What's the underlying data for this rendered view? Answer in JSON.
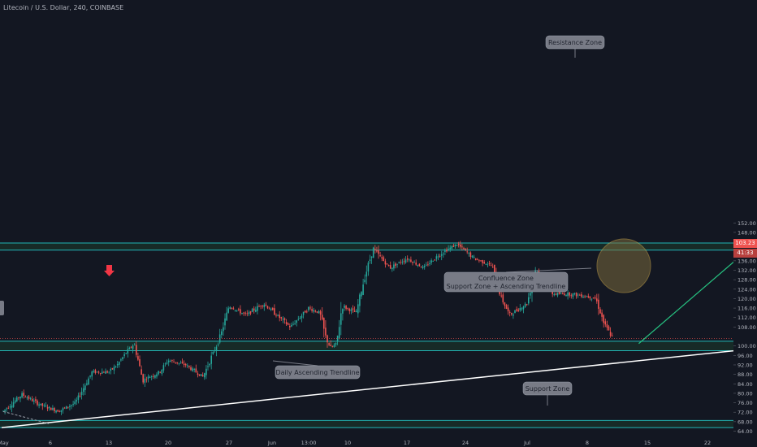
{
  "header": {
    "symbol_line": "Litecoin / U.S. Dollar, 240, COINBASE"
  },
  "price_tag": {
    "value": "103.23",
    "countdown": "41:33"
  },
  "chart_data": {
    "type": "candlestick",
    "title": "Litecoin / U.S. Dollar, 240, COINBASE",
    "ylim": [
      64,
      152
    ],
    "y_ticks": [
      "152.00",
      "148.00",
      "144.00",
      "140.00",
      "136.00",
      "132.00",
      "128.00",
      "124.00",
      "120.00",
      "116.00",
      "112.00",
      "108.00",
      "100.00",
      "96.00",
      "92.00",
      "88.00",
      "84.00",
      "80.00",
      "76.00",
      "72.00",
      "68.00",
      "64.00"
    ],
    "x_ticks": [
      "May",
      "6",
      "13",
      "20",
      "27",
      "Jun",
      "13:00",
      "10",
      "17",
      "24",
      "Jul",
      "8",
      "15",
      "22"
    ],
    "price_path": [
      {
        "x": "May 1",
        "y": 72.5
      },
      {
        "x": "May 3",
        "y": 79.5
      },
      {
        "x": "May 5",
        "y": 75
      },
      {
        "x": "May 7",
        "y": 72.5
      },
      {
        "x": "May 9",
        "y": 76
      },
      {
        "x": "May 11",
        "y": 89
      },
      {
        "x": "May 13",
        "y": 89
      },
      {
        "x": "May 14",
        "y": 92
      },
      {
        "x": "May 15",
        "y": 97
      },
      {
        "x": "May 16",
        "y": 101
      },
      {
        "x": "May 17",
        "y": 85.5
      },
      {
        "x": "May 19",
        "y": 89
      },
      {
        "x": "May 20",
        "y": 94
      },
      {
        "x": "May 22",
        "y": 92
      },
      {
        "x": "May 24",
        "y": 87
      },
      {
        "x": "May 26",
        "y": 104
      },
      {
        "x": "May 27",
        "y": 117
      },
      {
        "x": "May 29",
        "y": 113
      },
      {
        "x": "May 31",
        "y": 118
      },
      {
        "x": "Jun 2",
        "y": 108
      },
      {
        "x": "Jun 3",
        "y": 116
      },
      {
        "x": "Jun 5",
        "y": 114
      },
      {
        "x": "Jun 6",
        "y": 104
      },
      {
        "x": "Jun 7",
        "y": 99
      },
      {
        "x": "Jun 8",
        "y": 101
      },
      {
        "x": "Jun 9",
        "y": 117
      },
      {
        "x": "Jun 11",
        "y": 114
      },
      {
        "x": "Jun 12",
        "y": 129
      },
      {
        "x": "Jun 13",
        "y": 141
      },
      {
        "x": "Jun 15",
        "y": 133
      },
      {
        "x": "Jun 17",
        "y": 137
      },
      {
        "x": "Jun 19",
        "y": 133
      },
      {
        "x": "Jun 21",
        "y": 139
      },
      {
        "x": "Jun 23",
        "y": 143
      },
      {
        "x": "Jun 25",
        "y": 137
      },
      {
        "x": "Jun 27",
        "y": 134
      },
      {
        "x": "Jun 28",
        "y": 121
      },
      {
        "x": "Jun 29",
        "y": 113
      },
      {
        "x": "Jul 1",
        "y": 118
      },
      {
        "x": "Jul 2",
        "y": 133
      },
      {
        "x": "Jul 4",
        "y": 122
      },
      {
        "x": "Jul 6",
        "y": 122
      },
      {
        "x": "Jul 8",
        "y": 121
      },
      {
        "x": "Jul 9",
        "y": 120
      },
      {
        "x": "Jul 10",
        "y": 109
      },
      {
        "x": "Jul 11",
        "y": 103.23
      }
    ],
    "zones": [
      {
        "name": "Resistance Zone",
        "low": 140.5,
        "high": 143.5
      },
      {
        "name": "Support Zone",
        "low": 98,
        "high": 102
      },
      {
        "name": "Support Zone",
        "low": 65.5,
        "high": 68.5
      }
    ],
    "annotations": [
      {
        "text": "Resistance Zone"
      },
      {
        "text": "Confluence Zone\nSupport Zone + Ascending Trendline"
      },
      {
        "text": "Daily Ascending Trendline"
      },
      {
        "text": "Support Zone"
      }
    ],
    "trendline": {
      "label": "Daily Ascending Trendline",
      "from": {
        "x": "Apr 30",
        "y": 65.5
      },
      "to": {
        "x": "Jul 28",
        "y": 99
      }
    },
    "projection": {
      "from": {
        "x": "Jul 14",
        "y": 101
      },
      "to": {
        "x": "Jul 27",
        "y": 141
      }
    },
    "last_price": 103.23,
    "colors": {
      "background": "#131722",
      "up": "#26a69a",
      "down": "#ef5350",
      "zone_line": "#22b5b5",
      "zone_fill": "#1c3a2c",
      "trendline": "#ffffff",
      "projection": "#26c281",
      "confluence_fill": "#7a6a3c",
      "marker": "#f23645"
    }
  }
}
